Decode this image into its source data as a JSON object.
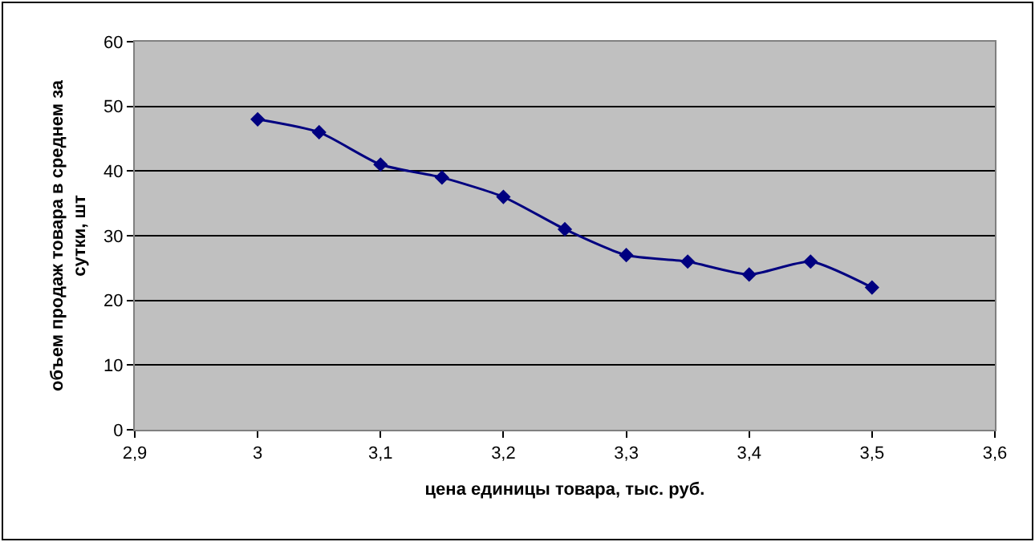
{
  "chart_data": {
    "type": "line",
    "xlabel": "цена единицы товара, тыс. руб.",
    "ylabel": "объем продаж товара в среднем за сутки, шт",
    "x": [
      3.0,
      3.05,
      3.1,
      3.15,
      3.2,
      3.25,
      3.3,
      3.35,
      3.4,
      3.45,
      3.5
    ],
    "series": [
      {
        "color": "#000080",
        "values": [
          48,
          46,
          41,
          39,
          36,
          31,
          27,
          26,
          24,
          26,
          22
        ]
      }
    ],
    "xlim": [
      2.9,
      3.6
    ],
    "xticks": [
      {
        "value": 2.9,
        "label": "2,9"
      },
      {
        "value": 3,
        "label": "3"
      },
      {
        "value": 3.1,
        "label": "3,1"
      },
      {
        "value": 3.2,
        "label": "3,2"
      },
      {
        "value": 3.3,
        "label": "3,3"
      },
      {
        "value": 3.4,
        "label": "3,4"
      },
      {
        "value": 3.5,
        "label": "3,5"
      },
      {
        "value": 3.6,
        "label": "3,6"
      }
    ],
    "ylim": [
      0,
      60
    ],
    "yticks": [
      0,
      10,
      20,
      30,
      40,
      50,
      60
    ],
    "grid": "y",
    "marker": "diamond",
    "line_style": "solid"
  }
}
